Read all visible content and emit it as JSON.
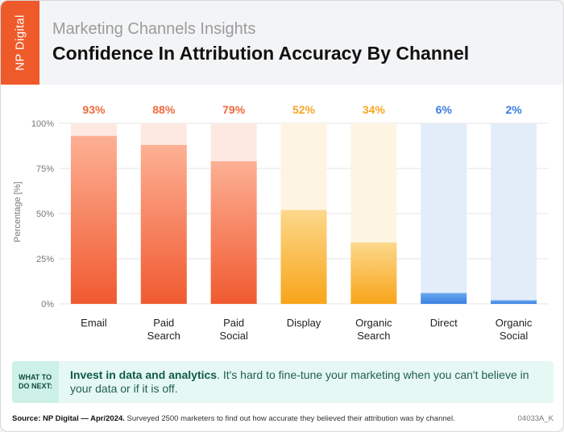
{
  "header": {
    "logo_text": "NP Digital",
    "subtitle": "Marketing Channels Insights",
    "title": "Confidence In Attribution Accuracy By Channel"
  },
  "colors": {
    "orange": "#f26a3c",
    "amber": "#fbb431",
    "blue": "#4a8ee8"
  },
  "chart_data": {
    "type": "bar",
    "categories": [
      "Email",
      "Paid Search",
      "Paid Social",
      "Display",
      "Organic Search",
      "Direct",
      "Organic Social"
    ],
    "category_lines": [
      [
        "Email"
      ],
      [
        "Paid",
        "Search"
      ],
      [
        "Paid",
        "Social"
      ],
      [
        "Display"
      ],
      [
        "Organic",
        "Search"
      ],
      [
        "Direct"
      ],
      [
        "Organic",
        "Social"
      ]
    ],
    "values": [
      93,
      88,
      79,
      52,
      34,
      6,
      2
    ],
    "value_labels": [
      "93%",
      "88%",
      "79%",
      "52%",
      "34%",
      "6%",
      "2%"
    ],
    "color_groups": [
      "orange",
      "orange",
      "orange",
      "amber",
      "amber",
      "blue",
      "blue"
    ],
    "ylabel": "Percentage [%]",
    "ylim": [
      0,
      100
    ],
    "yticks": [
      0,
      25,
      50,
      75,
      100
    ],
    "ytick_labels": [
      "0%",
      "25%",
      "50%",
      "75%",
      "100%"
    ],
    "grid": true
  },
  "callout": {
    "tag": "WHAT TO\nDO NEXT:",
    "bold_text": "Invest in data and analytics",
    "text": ". It's hard to fine-tune your marketing when you can't believe in your data or if it is off."
  },
  "footer": {
    "source_label": "Source: NP Digital — Apr/2024.",
    "source_text": " Surveyed 2500 marketers to find out how accurate they believed their attribution was by channel.",
    "code": "04033A_K"
  }
}
